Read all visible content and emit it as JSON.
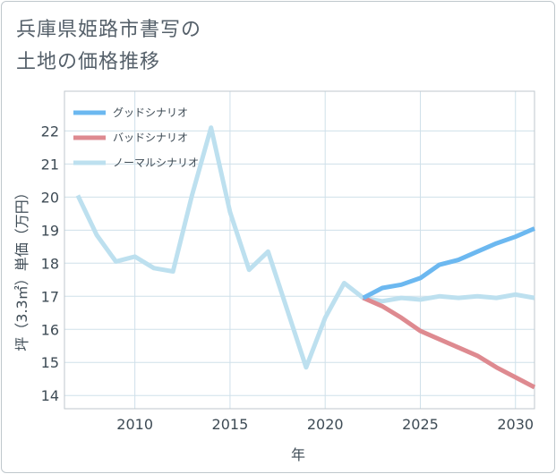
{
  "title_lines": [
    "兵庫県姫路市書写の",
    "土地の価格推移"
  ],
  "colors": {
    "good": "#6cb8f0",
    "bad": "#de8a90",
    "normal": "#bde0ef",
    "grid": "#cfe0ea",
    "axis_text": "#3e4b55",
    "border": "#bfc7cc"
  },
  "chart_data": {
    "type": "line",
    "title": "兵庫県姫路市書写の土地の価格推移",
    "xlabel": "年",
    "ylabel": "坪（3.3㎡）単価（万円）",
    "xlim": [
      2006.3,
      2031
    ],
    "ylim": [
      13.6,
      23.2
    ],
    "x_ticks": [
      2010,
      2015,
      2020,
      2025,
      2030
    ],
    "y_ticks": [
      14,
      15,
      16,
      17,
      18,
      19,
      20,
      21,
      22
    ],
    "legend_position": "top-left",
    "series": [
      {
        "name": "グッドシナリオ",
        "color": "#6cb8f0",
        "x": [
          2022,
          2023,
          2024,
          2025,
          2026,
          2027,
          2028,
          2029,
          2030,
          2031
        ],
        "y": [
          16.95,
          17.25,
          17.35,
          17.55,
          17.95,
          18.1,
          18.35,
          18.6,
          18.8,
          19.05
        ]
      },
      {
        "name": "バッドシナリオ",
        "color": "#de8a90",
        "x": [
          2022,
          2023,
          2024,
          2025,
          2026,
          2027,
          2028,
          2029,
          2030,
          2031
        ],
        "y": [
          16.95,
          16.7,
          16.35,
          15.95,
          15.7,
          15.45,
          15.2,
          14.85,
          14.55,
          14.25
        ]
      },
      {
        "name": "ノーマルシナリオ",
        "color": "#bde0ef",
        "x": [
          2007,
          2008,
          2009,
          2010,
          2011,
          2012,
          2013,
          2014,
          2015,
          2016,
          2017,
          2018,
          2019,
          2020,
          2021,
          2022,
          2023,
          2024,
          2025,
          2026,
          2027,
          2028,
          2029,
          2030,
          2031
        ],
        "y": [
          20.05,
          18.85,
          18.05,
          18.2,
          17.85,
          17.75,
          20.05,
          22.1,
          19.55,
          17.8,
          18.35,
          16.6,
          14.85,
          16.35,
          17.4,
          16.95,
          16.85,
          16.95,
          16.9,
          17.0,
          16.95,
          17.0,
          16.95,
          17.05,
          16.95
        ]
      }
    ]
  }
}
